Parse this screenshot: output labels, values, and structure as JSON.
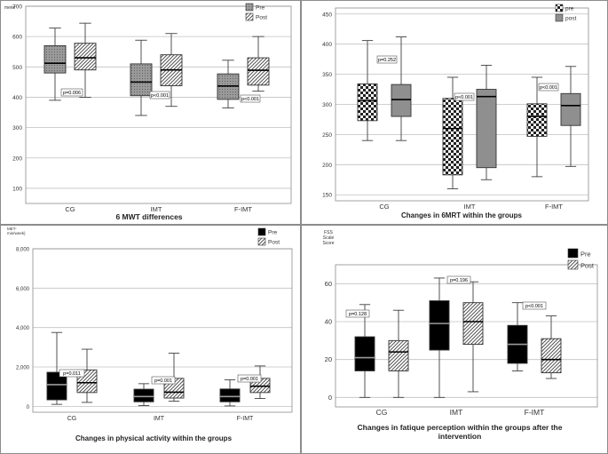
{
  "colors": {
    "grid": "#c0c0c0",
    "axis": "#8c8c8c",
    "whisker": "#404040",
    "median": "#000000",
    "gray_fill": "#8f8f8f",
    "black_fill": "#000000",
    "text": "#333333"
  },
  "chart_data": [
    {
      "type": "boxplot",
      "title": "6 MWT differences",
      "ylabel": "meter",
      "ylim": [
        50,
        700
      ],
      "yticks": [
        100,
        200,
        300,
        400,
        500,
        600,
        700
      ],
      "categories": [
        "CG",
        "IMT",
        "F-IMT"
      ],
      "legend": [
        {
          "name": "Pre",
          "pattern": "gray-dots"
        },
        {
          "name": "Post",
          "pattern": "diag-hatch"
        }
      ],
      "series": [
        {
          "name": "Pre",
          "pattern": "gray-dots",
          "boxes": [
            {
              "min": 390,
              "q1": 480,
              "median": 512,
              "q3": 570,
              "max": 628
            },
            {
              "min": 340,
              "q1": 405,
              "median": 450,
              "q3": 510,
              "max": 588
            },
            {
              "min": 365,
              "q1": 393,
              "median": 437,
              "q3": 477,
              "max": 522
            }
          ]
        },
        {
          "name": "Post",
          "pattern": "diag-hatch",
          "boxes": [
            {
              "min": 400,
              "q1": 490,
              "median": 530,
              "q3": 578,
              "max": 644
            },
            {
              "min": 370,
              "q1": 438,
              "median": 490,
              "q3": 540,
              "max": 610
            },
            {
              "min": 420,
              "q1": 440,
              "median": 489,
              "q3": 530,
              "max": 600
            }
          ]
        }
      ],
      "annotations": [
        "p=0.006",
        "p<0.001",
        "p<0.001"
      ]
    },
    {
      "type": "boxplot",
      "title": "Changes in 6MRT within the groups",
      "ylabel": "",
      "ylim": [
        140,
        460
      ],
      "yticks": [
        150,
        200,
        250,
        300,
        350,
        400,
        450
      ],
      "categories": [
        "CG",
        "IMT",
        "F-IMT"
      ],
      "legend": [
        {
          "name": "pre",
          "pattern": "checker"
        },
        {
          "name": "post",
          "pattern": "gray"
        }
      ],
      "series": [
        {
          "name": "pre",
          "pattern": "checker",
          "boxes": [
            {
              "min": 240,
              "q1": 273,
              "median": 306,
              "q3": 334,
              "max": 406
            },
            {
              "min": 160,
              "q1": 183,
              "median": 260,
              "q3": 310,
              "max": 345
            },
            {
              "min": 180,
              "q1": 247,
              "median": 280,
              "q3": 301,
              "max": 345
            }
          ]
        },
        {
          "name": "post",
          "pattern": "gray",
          "boxes": [
            {
              "min": 240,
              "q1": 280,
              "median": 308,
              "q3": 333,
              "max": 412
            },
            {
              "min": 175,
              "q1": 195,
              "median": 313,
              "q3": 325,
              "max": 365
            },
            {
              "min": 197,
              "q1": 265,
              "median": 298,
              "q3": 318,
              "max": 363
            }
          ]
        }
      ],
      "annotations": [
        "p=0.252",
        "p<0.001",
        "p<0.001"
      ]
    },
    {
      "type": "boxplot",
      "title": "Changes in physical activity within the groups",
      "ylabel": "MET-min/week)",
      "ylim": [
        -300,
        8000
      ],
      "yticks": [
        0,
        2000,
        4000,
        6000,
        8000
      ],
      "ytick_labels": [
        "0",
        "2,000",
        "4,000",
        "6,000",
        "8,000"
      ],
      "categories": [
        "CG",
        "IMT",
        "F-IMT"
      ],
      "legend": [
        {
          "name": "Pre",
          "pattern": "black"
        },
        {
          "name": "Post",
          "pattern": "diag-hatch"
        }
      ],
      "series": [
        {
          "name": "Pre",
          "pattern": "black",
          "boxes": [
            {
              "min": 100,
              "q1": 330,
              "median": 1100,
              "q3": 1730,
              "max": 3750
            },
            {
              "min": 40,
              "q1": 230,
              "median": 500,
              "q3": 870,
              "max": 1150
            },
            {
              "min": 20,
              "q1": 230,
              "median": 500,
              "q3": 880,
              "max": 1350
            }
          ]
        },
        {
          "name": "Post",
          "pattern": "diag-hatch",
          "boxes": [
            {
              "min": 200,
              "q1": 700,
              "median": 1200,
              "q3": 1850,
              "max": 2900
            },
            {
              "min": 260,
              "q1": 420,
              "median": 720,
              "q3": 1420,
              "max": 2700
            },
            {
              "min": 400,
              "q1": 700,
              "median": 1020,
              "q3": 1420,
              "max": 2050
            }
          ]
        }
      ],
      "annotations": [
        "p=0.011",
        "p=0.001",
        "p=0.001"
      ]
    },
    {
      "type": "boxplot",
      "title": "Changes in fatique perception within the groups after the intervention",
      "ylabel": "FSS Scale Score",
      "ylim": [
        -5,
        70
      ],
      "yticks": [
        0,
        20,
        40,
        60
      ],
      "categories": [
        "CG",
        "IMT",
        "F-IMT"
      ],
      "legend": [
        {
          "name": "Pre",
          "pattern": "black"
        },
        {
          "name": "Post",
          "pattern": "diag-hatch"
        }
      ],
      "series": [
        {
          "name": "Pre",
          "pattern": "black",
          "boxes": [
            {
              "min": 0,
              "q1": 14,
              "median": 21,
              "q3": 32,
              "max": 49
            },
            {
              "min": 0,
              "q1": 25,
              "median": 39,
              "q3": 51,
              "max": 63
            },
            {
              "min": 14,
              "q1": 18,
              "median": 28,
              "q3": 38,
              "max": 50
            }
          ]
        },
        {
          "name": "Post",
          "pattern": "diag-hatch",
          "boxes": [
            {
              "min": 0,
              "q1": 14,
              "median": 24,
              "q3": 30,
              "max": 46
            },
            {
              "min": 3,
              "q1": 28,
              "median": 40,
              "q3": 50,
              "max": 61
            },
            {
              "min": 10,
              "q1": 13,
              "median": 20,
              "q3": 31,
              "max": 43
            }
          ]
        }
      ],
      "annotations": [
        "p=0.128",
        "p=0.196",
        "p<0.001"
      ]
    }
  ]
}
